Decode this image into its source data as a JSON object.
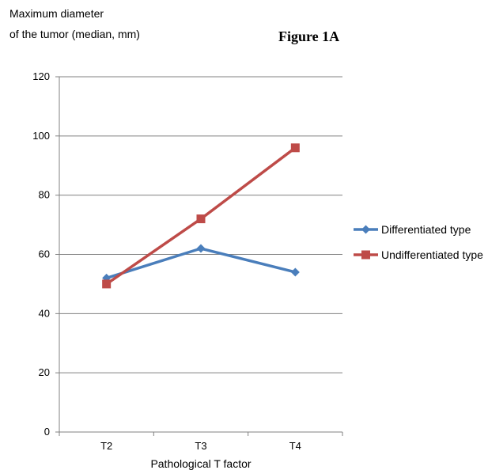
{
  "chart_data": {
    "type": "line",
    "title": "Figure 1A",
    "ylabel_line1": "Maximum diameter",
    "ylabel_line2": "of the tumor (median, mm)",
    "xlabel": "Pathological T factor",
    "categories": [
      "T2",
      "T3",
      "T4"
    ],
    "ylim": [
      0,
      120
    ],
    "yticks": [
      0,
      20,
      40,
      60,
      80,
      100,
      120
    ],
    "grid": true,
    "legend_position": "right",
    "series": [
      {
        "name": "Differentiated type",
        "values": [
          52,
          62,
          54
        ],
        "color": "#4a7ebb",
        "marker": "diamond"
      },
      {
        "name": "Undifferentiated type",
        "values": [
          50,
          72,
          96
        ],
        "color": "#be4b48",
        "marker": "square"
      }
    ]
  }
}
